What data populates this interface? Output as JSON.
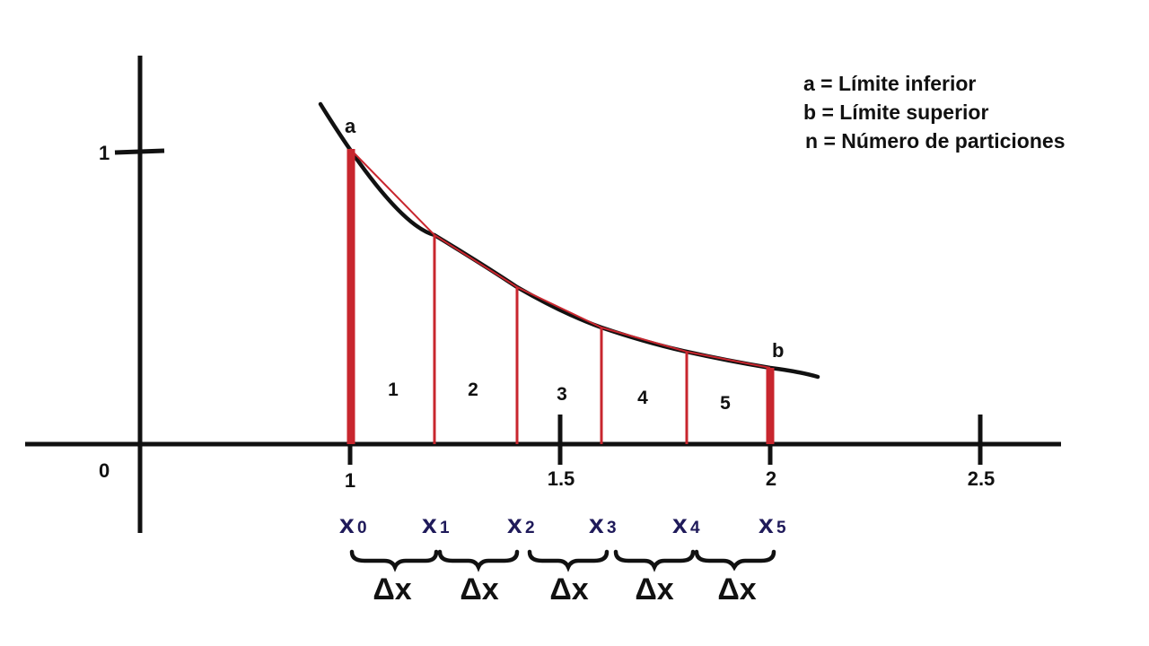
{
  "legend": {
    "a_line": "a = Límite inferior",
    "b_line": "b = Límite superior",
    "n_line": "n = Número de particiones"
  },
  "labels": {
    "a": "a",
    "b": "b",
    "origin": "0",
    "y_tick": "1",
    "delta_x": "Δx"
  },
  "x_ticks": [
    {
      "label": "1",
      "value": 1
    },
    {
      "label": "1.5",
      "value": 1.5
    },
    {
      "label": "2",
      "value": 2
    },
    {
      "label": "2.5",
      "value": 2.5
    }
  ],
  "partition_points": [
    {
      "base": "x",
      "index": "0"
    },
    {
      "base": "x",
      "index": "1"
    },
    {
      "base": "x",
      "index": "2"
    },
    {
      "base": "x",
      "index": "3"
    },
    {
      "base": "x",
      "index": "4"
    },
    {
      "base": "x",
      "index": "5"
    }
  ],
  "partition_labels": [
    "1",
    "2",
    "3",
    "4",
    "5"
  ],
  "colors": {
    "axis": "#111111",
    "curve": "#111111",
    "partition": "#c8262e",
    "subscript": "#1f1a5a"
  }
}
